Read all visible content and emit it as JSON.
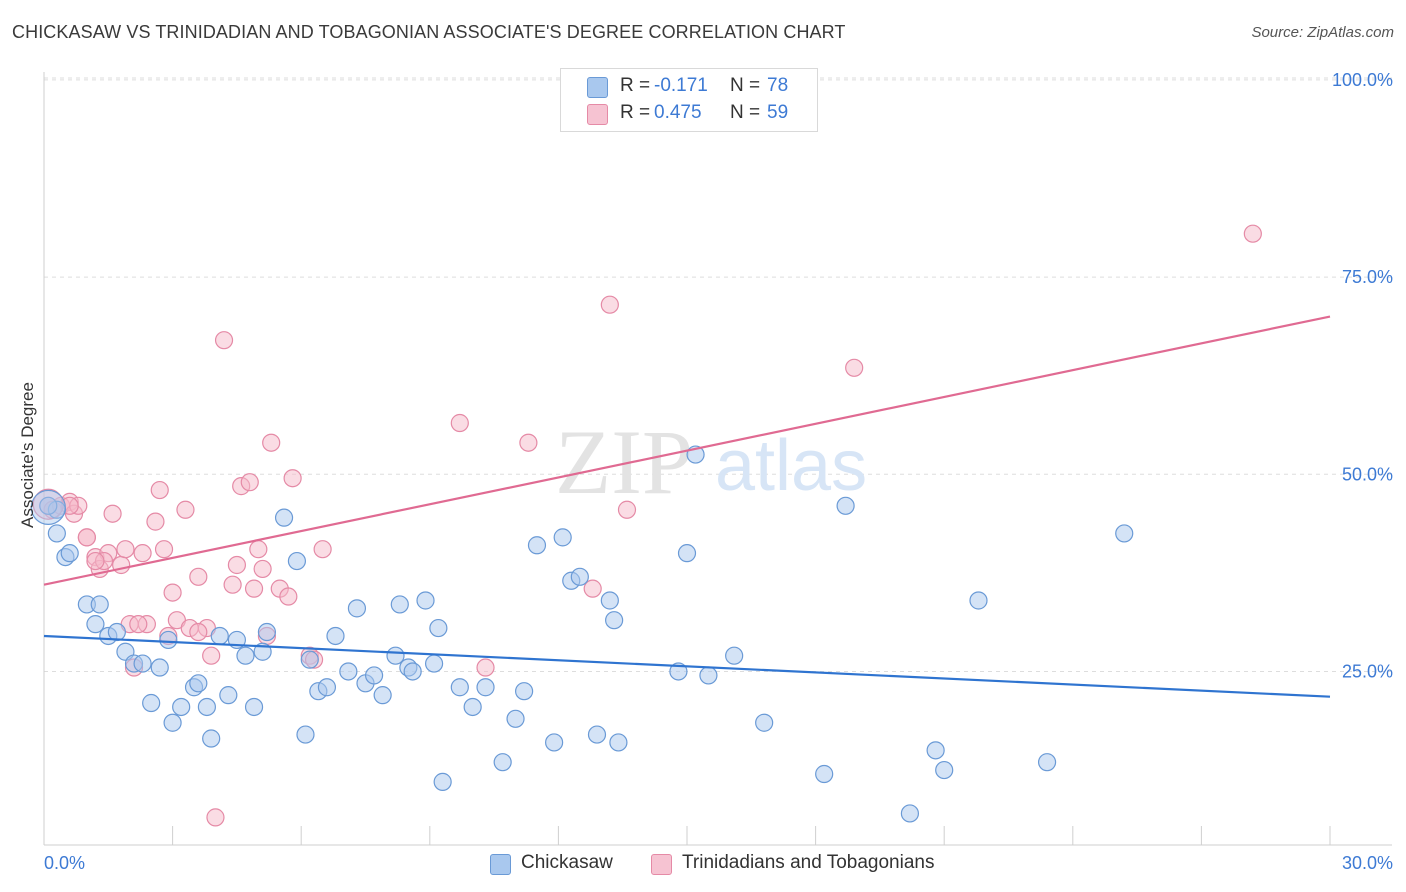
{
  "header": {
    "title": "CHICKASAW VS TRINIDADIAN AND TOBAGONIAN ASSOCIATE'S DEGREE CORRELATION CHART",
    "source": "Source: ZipAtlas.com"
  },
  "watermark": {
    "zip": "ZIP",
    "atlas": "atlas"
  },
  "legend": {
    "rows": [
      {
        "r_label": "R =",
        "r_value": "-0.171",
        "n_label": "N =",
        "n_value": "78"
      },
      {
        "r_label": "R =",
        "r_value": "0.475",
        "n_label": "N =",
        "n_value": "59"
      }
    ]
  },
  "colors": {
    "blue_fill": "#a9c8ee",
    "blue_stroke": "#6a9ad6",
    "blue_line": "#2f74d0",
    "pink_fill": "#f6b9ca",
    "pink_stroke": "#e58aa6",
    "pink_line": "#e06a92",
    "tick_text": "#3d7ad4",
    "grid": "#dddddd"
  },
  "chart_data": {
    "type": "scatter",
    "title": "CHICKASAW VS TRINIDADIAN AND TOBAGONIAN ASSOCIATE'S DEGREE CORRELATION CHART",
    "xlabel": "",
    "ylabel": "Associate's Degree",
    "xlim": [
      0,
      30
    ],
    "ylim": [
      3,
      101
    ],
    "x_tick_labels": [
      "0.0%",
      "30.0%"
    ],
    "y_ticks": [
      25,
      50,
      75,
      100
    ],
    "y_tick_labels": [
      "25.0%",
      "50.0%",
      "75.0%",
      "100.0%"
    ],
    "grid": true,
    "legend_position": "top-center",
    "series": [
      {
        "name": "Chickasaw",
        "color": "#a9c8ee",
        "trend": {
          "x": [
            0,
            30
          ],
          "y": [
            29.5,
            21.8
          ]
        },
        "points": [
          [
            0.3,
            45.5
          ],
          [
            0.3,
            42.5
          ],
          [
            0.5,
            39.5
          ],
          [
            0.6,
            40
          ],
          [
            1.0,
            33.5
          ],
          [
            1.2,
            31
          ],
          [
            1.3,
            33.5
          ],
          [
            1.5,
            29.5
          ],
          [
            1.7,
            30
          ],
          [
            1.9,
            27.5
          ],
          [
            2.1,
            26
          ],
          [
            2.3,
            26
          ],
          [
            2.5,
            21
          ],
          [
            2.7,
            25.5
          ],
          [
            2.9,
            29
          ],
          [
            3.0,
            18.5
          ],
          [
            3.2,
            20.5
          ],
          [
            3.5,
            23
          ],
          [
            3.6,
            23.5
          ],
          [
            3.8,
            20.5
          ],
          [
            3.9,
            16.5
          ],
          [
            4.1,
            29.5
          ],
          [
            4.3,
            22
          ],
          [
            4.5,
            29
          ],
          [
            4.7,
            27
          ],
          [
            4.9,
            20.5
          ],
          [
            5.1,
            27.5
          ],
          [
            5.2,
            30
          ],
          [
            5.6,
            44.5
          ],
          [
            5.9,
            39
          ],
          [
            6.1,
            17
          ],
          [
            6.2,
            26.5
          ],
          [
            6.4,
            22.5
          ],
          [
            6.6,
            23
          ],
          [
            6.8,
            29.5
          ],
          [
            7.1,
            25
          ],
          [
            7.3,
            33
          ],
          [
            7.5,
            23.5
          ],
          [
            7.7,
            24.5
          ],
          [
            7.9,
            22
          ],
          [
            8.2,
            27
          ],
          [
            8.3,
            33.5
          ],
          [
            8.5,
            25.5
          ],
          [
            8.6,
            25
          ],
          [
            8.9,
            34
          ],
          [
            9.1,
            26
          ],
          [
            9.2,
            30.5
          ],
          [
            9.3,
            11
          ],
          [
            9.7,
            23
          ],
          [
            10.0,
            20.5
          ],
          [
            10.3,
            23
          ],
          [
            10.7,
            13.5
          ],
          [
            11.0,
            19
          ],
          [
            11.2,
            22.5
          ],
          [
            11.5,
            41
          ],
          [
            11.9,
            16
          ],
          [
            12.1,
            42
          ],
          [
            12.3,
            36.5
          ],
          [
            12.5,
            37
          ],
          [
            12.9,
            17
          ],
          [
            13.2,
            34
          ],
          [
            13.3,
            31.5
          ],
          [
            13.4,
            16
          ],
          [
            14.8,
            25
          ],
          [
            15.0,
            40
          ],
          [
            15.2,
            52.5
          ],
          [
            15.5,
            24.5
          ],
          [
            16.1,
            27
          ],
          [
            16.8,
            18.5
          ],
          [
            18.2,
            12
          ],
          [
            18.7,
            46
          ],
          [
            20.2,
            7
          ],
          [
            20.8,
            15
          ],
          [
            21.0,
            12.5
          ],
          [
            21.8,
            34
          ],
          [
            23.4,
            13.5
          ],
          [
            25.2,
            42.5
          ],
          [
            0.1,
            46
          ]
        ]
      },
      {
        "name": "Trinidadians and Tobagonians",
        "color": "#f6b9ca",
        "trend": {
          "x": [
            0,
            30
          ],
          "y": [
            36,
            70
          ]
        },
        "points": [
          [
            0.1,
            46
          ],
          [
            0.2,
            45.5
          ],
          [
            0.4,
            46
          ],
          [
            0.6,
            46.5
          ],
          [
            0.7,
            45
          ],
          [
            0.8,
            46
          ],
          [
            1.0,
            42
          ],
          [
            1.2,
            39.5
          ],
          [
            1.3,
            38
          ],
          [
            1.5,
            40
          ],
          [
            1.6,
            45
          ],
          [
            1.8,
            38.5
          ],
          [
            1.9,
            40.5
          ],
          [
            2.0,
            31
          ],
          [
            2.1,
            25.5
          ],
          [
            2.3,
            40
          ],
          [
            2.4,
            31
          ],
          [
            2.6,
            44
          ],
          [
            2.7,
            48
          ],
          [
            2.8,
            40.5
          ],
          [
            2.9,
            29.5
          ],
          [
            3.0,
            35
          ],
          [
            3.1,
            31.5
          ],
          [
            3.3,
            45.5
          ],
          [
            3.4,
            30.5
          ],
          [
            3.6,
            37
          ],
          [
            3.8,
            30.5
          ],
          [
            3.9,
            27
          ],
          [
            4.0,
            6.5
          ],
          [
            4.2,
            67
          ],
          [
            4.4,
            36
          ],
          [
            4.5,
            38.5
          ],
          [
            4.6,
            48.5
          ],
          [
            4.8,
            49
          ],
          [
            4.9,
            35.5
          ],
          [
            5.0,
            40.5
          ],
          [
            5.1,
            38
          ],
          [
            5.2,
            29.5
          ],
          [
            5.3,
            54
          ],
          [
            5.5,
            35.5
          ],
          [
            5.7,
            34.5
          ],
          [
            5.8,
            49.5
          ],
          [
            6.2,
            27
          ],
          [
            6.3,
            26.5
          ],
          [
            6.5,
            40.5
          ],
          [
            9.7,
            56.5
          ],
          [
            10.3,
            25.5
          ],
          [
            11.3,
            54
          ],
          [
            12.8,
            35.5
          ],
          [
            13.2,
            71.5
          ],
          [
            13.6,
            45.5
          ],
          [
            18.9,
            63.5
          ],
          [
            28.2,
            80.5
          ],
          [
            1.0,
            42
          ],
          [
            1.4,
            39
          ],
          [
            2.2,
            31
          ],
          [
            3.6,
            30
          ],
          [
            0.6,
            46
          ],
          [
            1.2,
            39
          ]
        ]
      }
    ]
  }
}
